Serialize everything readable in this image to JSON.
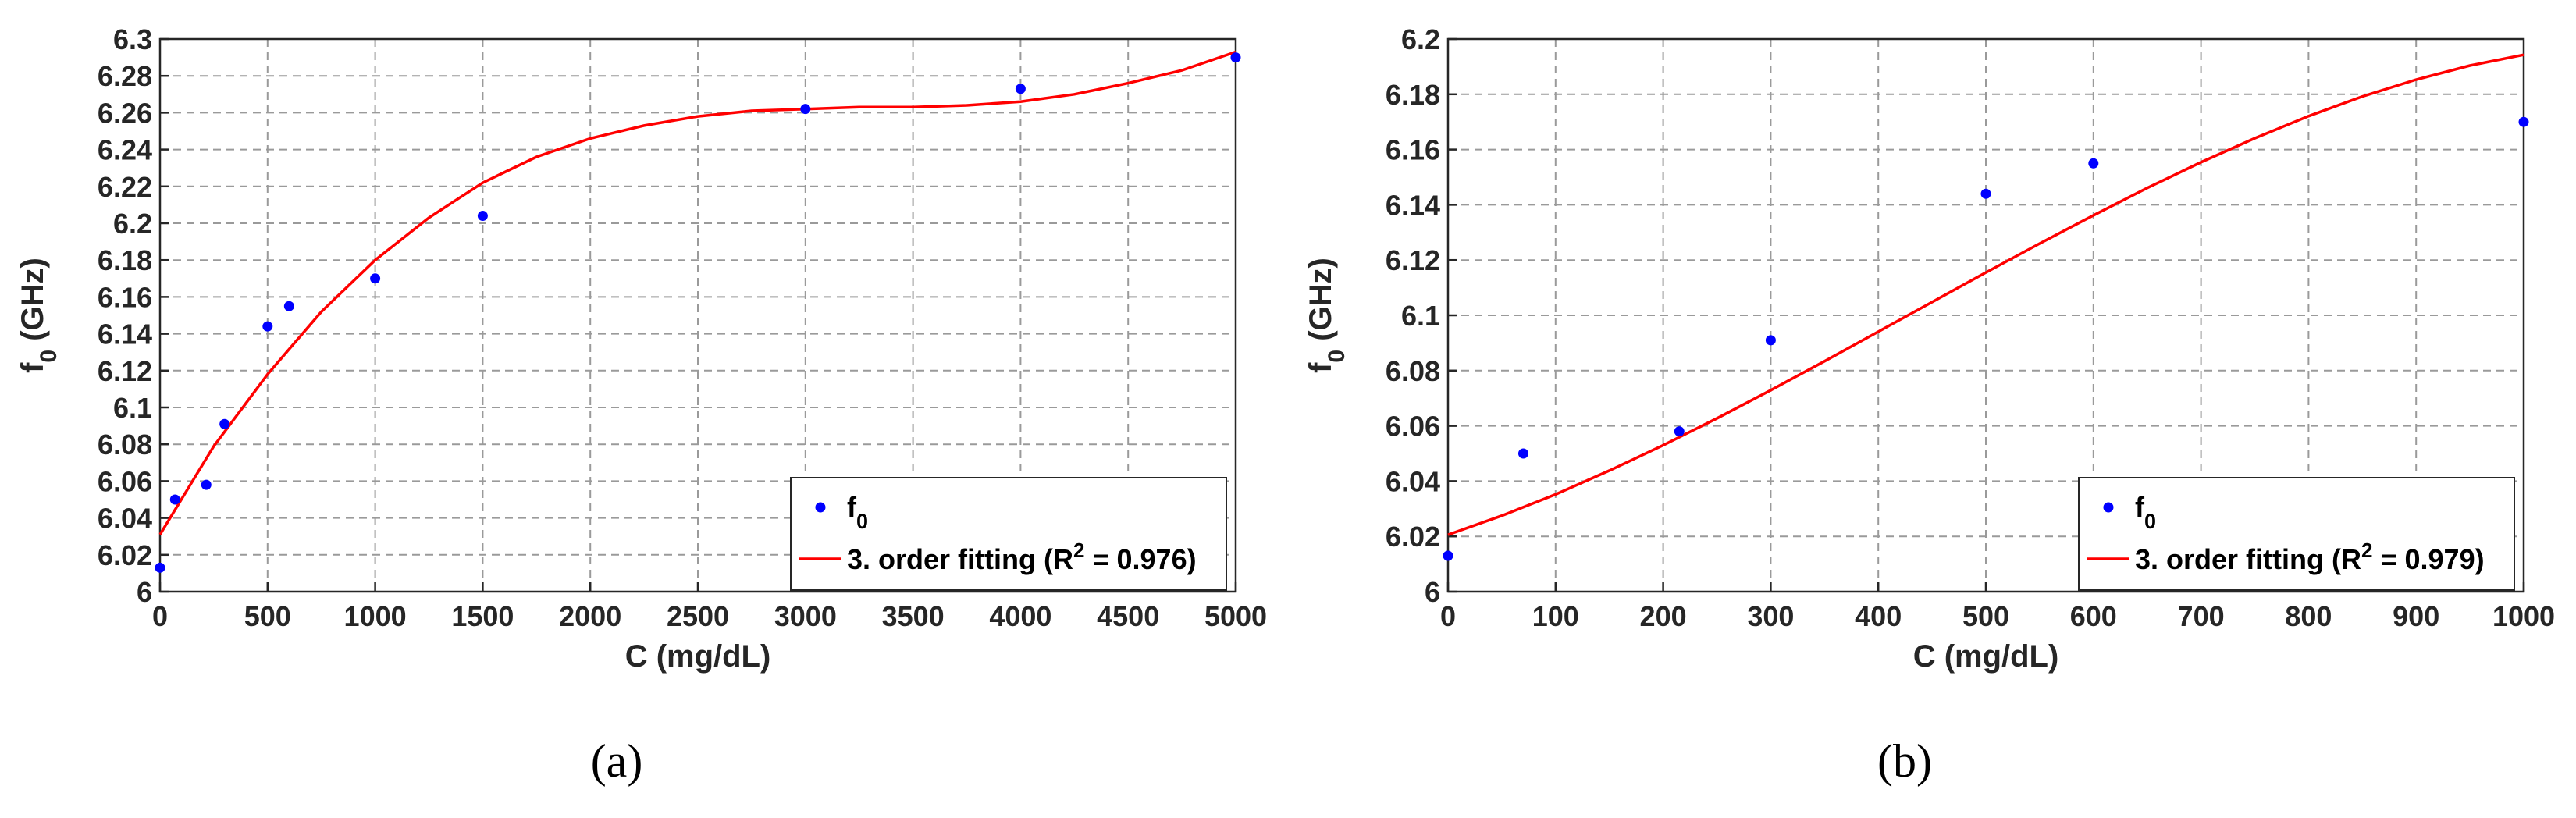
{
  "chart_data": [
    {
      "type": "scatter",
      "panel_label": "(a)",
      "xlabel": "C (mg/dL)",
      "ylabel": {
        "base": "f",
        "sub": "0",
        "rest": " (GHz)"
      },
      "xlim": [
        0,
        5000
      ],
      "ylim": [
        6,
        6.3
      ],
      "xticks": [
        0,
        500,
        1000,
        1500,
        2000,
        2500,
        3000,
        3500,
        4000,
        4500,
        5000
      ],
      "yticks": [
        6,
        6.02,
        6.04,
        6.06,
        6.08,
        6.1,
        6.12,
        6.14,
        6.16,
        6.18,
        6.2,
        6.22,
        6.24,
        6.26,
        6.28,
        6.3
      ],
      "xtick_labels": [
        "0",
        "500",
        "1000",
        "1500",
        "2000",
        "2500",
        "3000",
        "3500",
        "4000",
        "4500",
        "5000"
      ],
      "ytick_labels": [
        "6",
        "6.02",
        "6.04",
        "6.06",
        "6.08",
        "6.1",
        "6.12",
        "6.14",
        "6.16",
        "6.18",
        "6.2",
        "6.22",
        "6.24",
        "6.26",
        "6.28",
        "6.3"
      ],
      "grid": true,
      "legend_position": "bottom-right",
      "legend": {
        "points": {
          "base": "f",
          "sub": "0"
        },
        "fit": {
          "pre": "3. order fitting (R",
          "sup": "2",
          "post": " = 0.976)"
        }
      },
      "series": [
        {
          "type": "scatter",
          "color": "#0000ff",
          "x": [
            0,
            70,
            215,
            300,
            500,
            600,
            1000,
            1500,
            3000,
            4000,
            5000
          ],
          "y": [
            6.013,
            6.05,
            6.058,
            6.091,
            6.144,
            6.155,
            6.17,
            6.204,
            6.262,
            6.273,
            6.29
          ]
        },
        {
          "type": "line",
          "color": "#ff0000",
          "x": [
            0,
            250,
            500,
            750,
            1000,
            1250,
            1500,
            1750,
            2000,
            2250,
            2500,
            2750,
            3000,
            3250,
            3500,
            3750,
            4000,
            4250,
            4500,
            4750,
            5000
          ],
          "y": [
            6.031,
            6.079,
            6.118,
            6.152,
            6.18,
            6.203,
            6.222,
            6.236,
            6.246,
            6.253,
            6.258,
            6.261,
            6.262,
            6.263,
            6.263,
            6.264,
            6.266,
            6.27,
            6.276,
            6.283,
            6.293
          ]
        }
      ]
    },
    {
      "type": "scatter",
      "panel_label": "(b)",
      "xlabel": "C (mg/dL)",
      "ylabel": {
        "base": "f",
        "sub": "0",
        "rest": " (GHz)"
      },
      "xlim": [
        0,
        1000
      ],
      "ylim": [
        6,
        6.2
      ],
      "xticks": [
        0,
        100,
        200,
        300,
        400,
        500,
        600,
        700,
        800,
        900,
        1000
      ],
      "yticks": [
        6,
        6.02,
        6.04,
        6.06,
        6.08,
        6.1,
        6.12,
        6.14,
        6.16,
        6.18,
        6.2
      ],
      "xtick_labels": [
        "0",
        "100",
        "200",
        "300",
        "400",
        "500",
        "600",
        "700",
        "800",
        "900",
        "1000"
      ],
      "ytick_labels": [
        "6",
        "6.02",
        "6.04",
        "6.06",
        "6.08",
        "6.1",
        "6.12",
        "6.14",
        "6.16",
        "6.18",
        "6.2"
      ],
      "grid": true,
      "legend_position": "bottom-right",
      "legend": {
        "points": {
          "base": "f",
          "sub": "0"
        },
        "fit": {
          "pre": "3. order fitting (R",
          "sup": "2",
          "post": " = 0.979)"
        }
      },
      "series": [
        {
          "type": "scatter",
          "color": "#0000ff",
          "x": [
            0,
            70,
            215,
            300,
            500,
            600,
            1000
          ],
          "y": [
            6.013,
            6.05,
            6.058,
            6.091,
            6.144,
            6.155,
            6.17
          ]
        },
        {
          "type": "line",
          "color": "#ff0000",
          "x": [
            0,
            50,
            100,
            150,
            200,
            250,
            300,
            350,
            400,
            450,
            500,
            550,
            600,
            650,
            700,
            750,
            800,
            850,
            900,
            950,
            1000
          ],
          "y": [
            6.0206,
            6.0275,
            6.0352,
            6.0438,
            6.053,
            6.0627,
            6.0729,
            6.0834,
            6.0941,
            6.1048,
            6.1155,
            6.126,
            6.1362,
            6.1461,
            6.1554,
            6.1641,
            6.1721,
            6.1792,
            6.1853,
            6.1904,
            6.1943
          ]
        }
      ]
    }
  ]
}
